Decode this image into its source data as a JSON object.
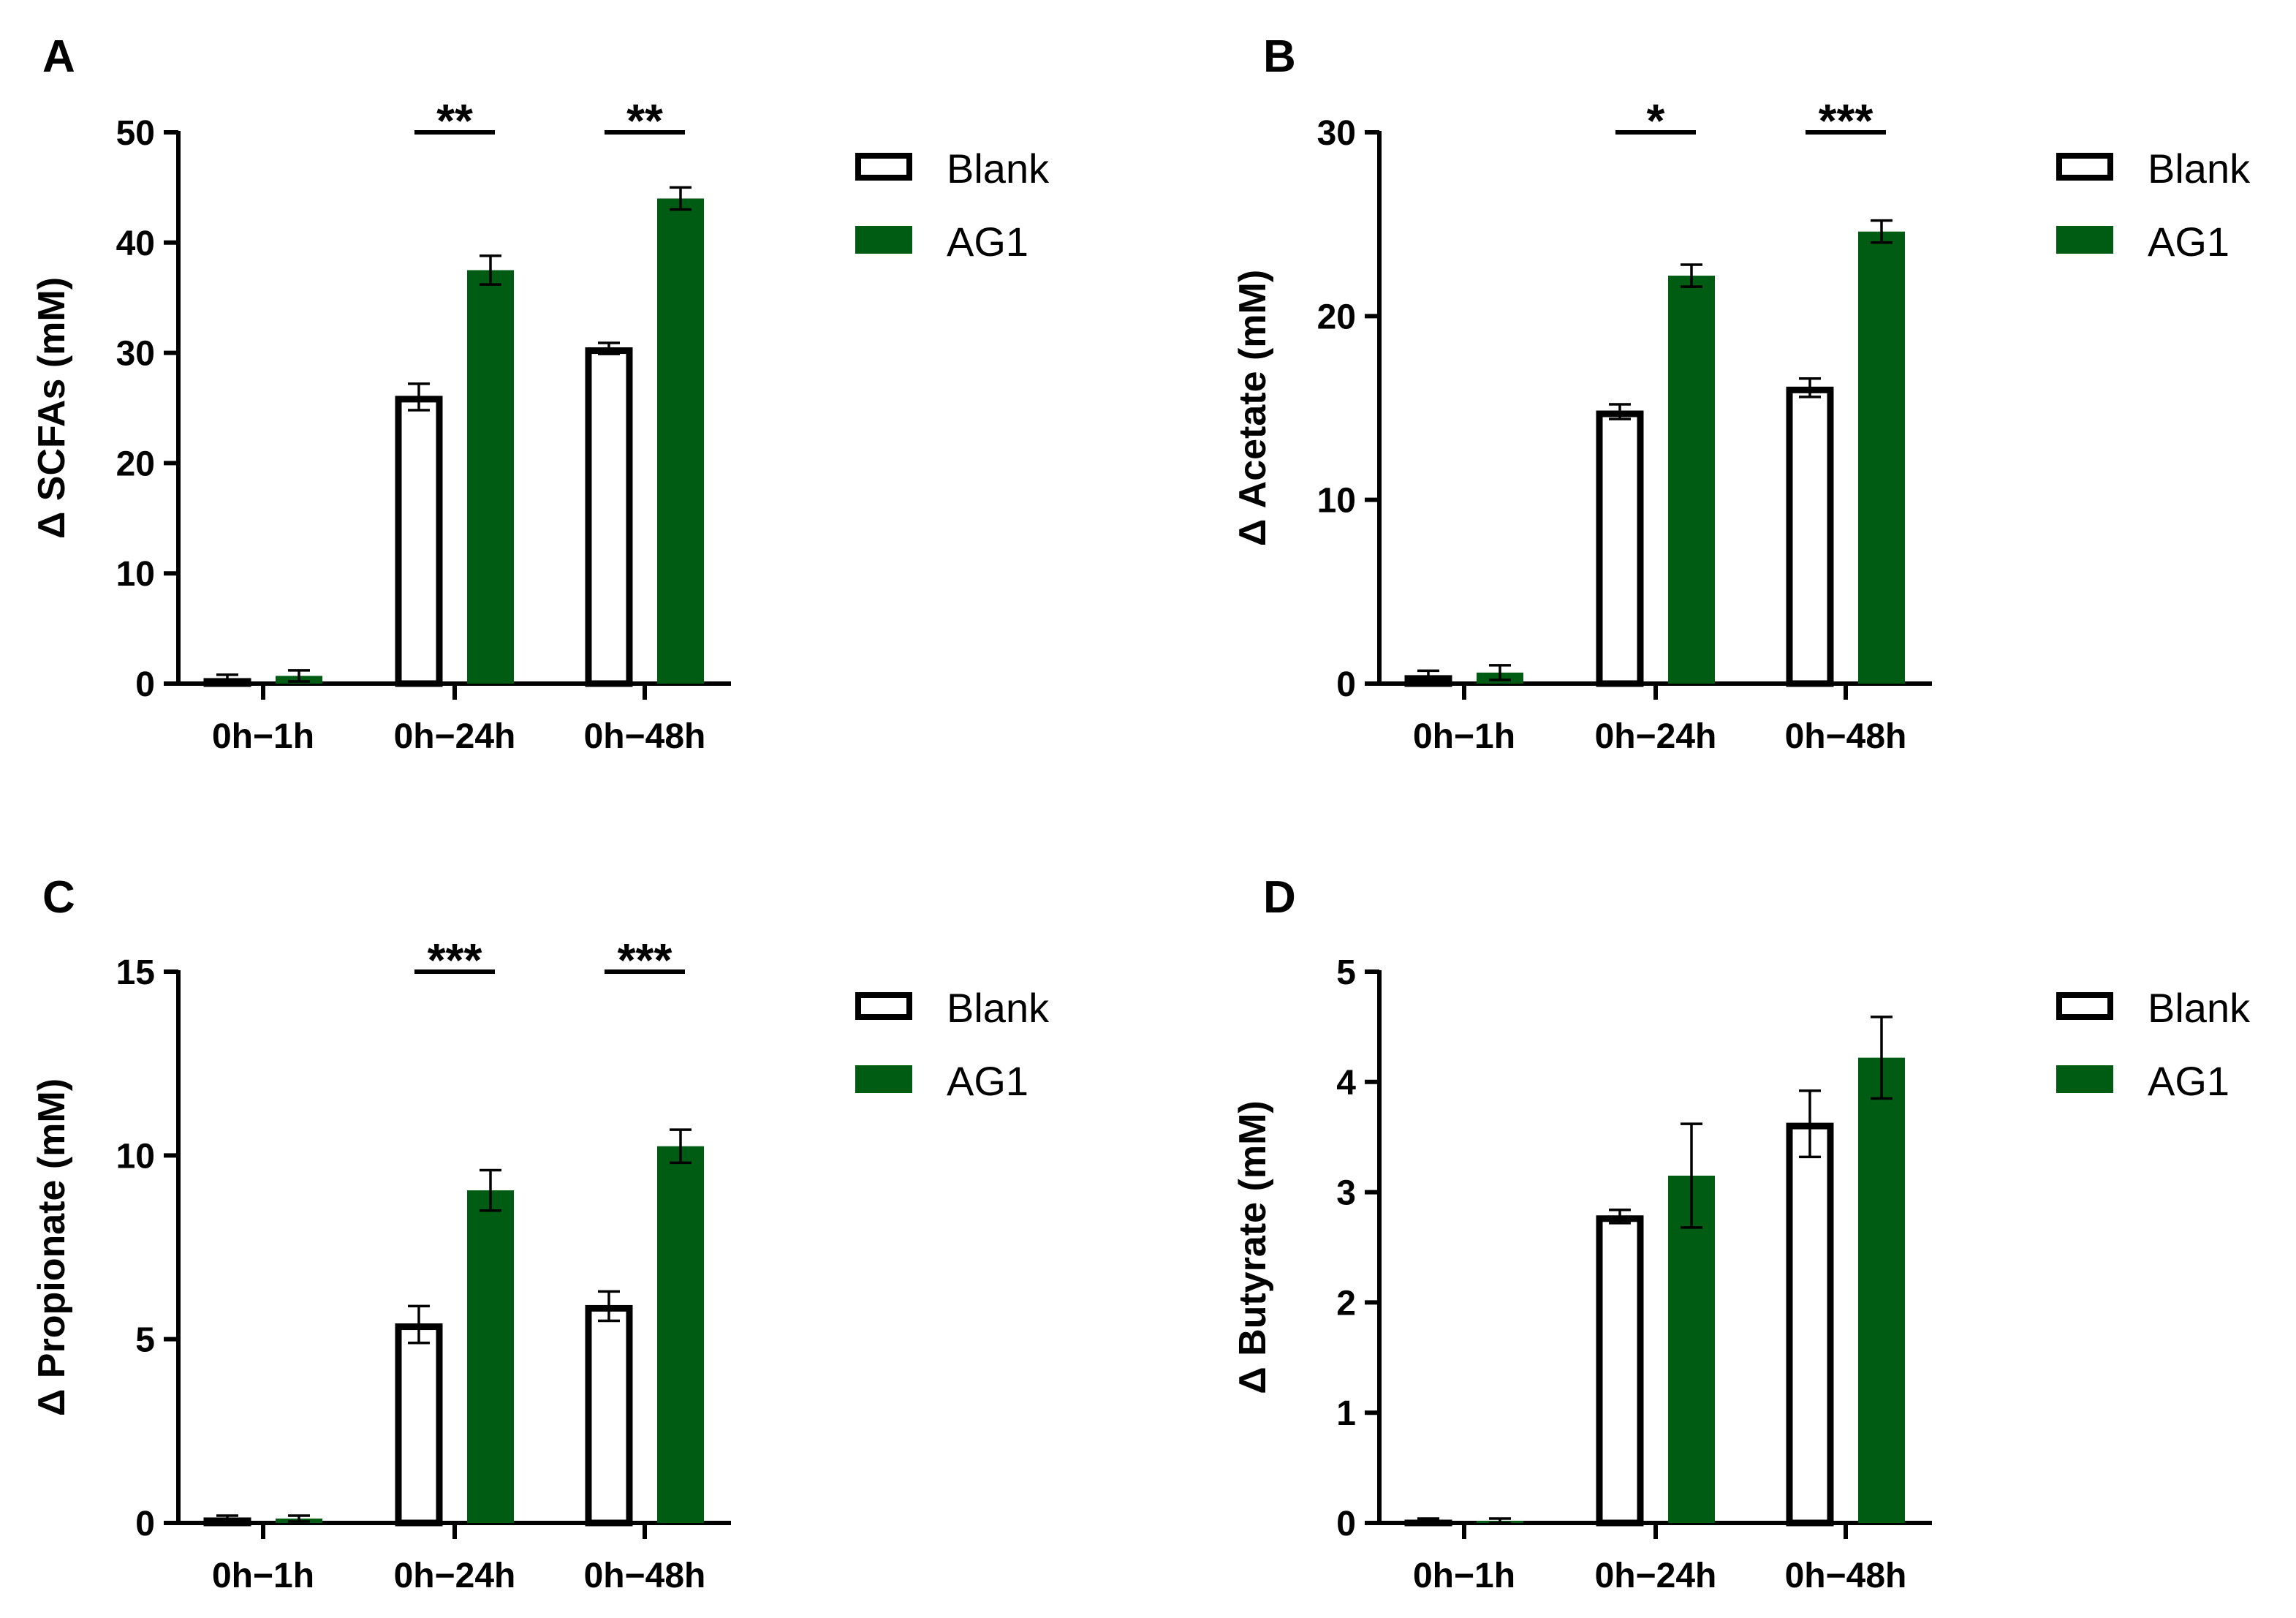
{
  "colors": {
    "blank_fill": "#ffffff",
    "blank_stroke": "#000000",
    "ag1_fill": "#005c12",
    "axis": "#000000"
  },
  "legend": [
    "Blank",
    "AG1"
  ],
  "chart_data": [
    {
      "panel": "A",
      "type": "bar",
      "categories": [
        "0h−1h",
        "0h−24h",
        "0h−48h"
      ],
      "ylabel": "Δ SCFAs (mM)",
      "ylim": [
        0,
        50
      ],
      "yticks": [
        0,
        10,
        20,
        30,
        40,
        50
      ],
      "series": [
        {
          "name": "Blank",
          "values": [
            0.4,
            26.0,
            30.4
          ],
          "errors": [
            0.4,
            1.2,
            0.5
          ]
        },
        {
          "name": "AG1",
          "values": [
            0.7,
            37.5,
            44.0
          ],
          "errors": [
            0.5,
            1.3,
            1.0
          ]
        }
      ],
      "significance": [
        "",
        "**",
        "**"
      ],
      "legend_position": "right"
    },
    {
      "panel": "B",
      "type": "bar",
      "categories": [
        "0h−1h",
        "0h−24h",
        "0h−48h"
      ],
      "ylabel": "Δ Acetate (mM)",
      "ylim": [
        0,
        30
      ],
      "yticks": [
        0,
        10,
        20,
        30
      ],
      "series": [
        {
          "name": "Blank",
          "values": [
            0.4,
            14.8,
            16.1
          ],
          "errors": [
            0.3,
            0.4,
            0.5
          ]
        },
        {
          "name": "AG1",
          "values": [
            0.6,
            22.2,
            24.6
          ],
          "errors": [
            0.4,
            0.6,
            0.6
          ]
        }
      ],
      "significance": [
        "",
        "*",
        "***"
      ],
      "legend_position": "right"
    },
    {
      "panel": "C",
      "type": "bar",
      "categories": [
        "0h−1h",
        "0h−24h",
        "0h−48h"
      ],
      "ylabel": "Δ Propionate (mM)",
      "ylim": [
        0,
        15
      ],
      "yticks": [
        0,
        5,
        10,
        15
      ],
      "series": [
        {
          "name": "Blank",
          "values": [
            0.12,
            5.4,
            5.9
          ],
          "errors": [
            0.08,
            0.5,
            0.4
          ]
        },
        {
          "name": "AG1",
          "values": [
            0.12,
            9.05,
            10.25
          ],
          "errors": [
            0.08,
            0.55,
            0.45
          ]
        }
      ],
      "significance": [
        "",
        "***",
        "***"
      ],
      "legend_position": "right"
    },
    {
      "panel": "D",
      "type": "bar",
      "categories": [
        "0h−1h",
        "0h−24h",
        "0h−48h"
      ],
      "ylabel": "Δ Butyrate (mM)",
      "ylim": [
        0,
        5
      ],
      "yticks": [
        0,
        1,
        2,
        3,
        4,
        5
      ],
      "series": [
        {
          "name": "Blank",
          "values": [
            0.02,
            2.78,
            3.62
          ],
          "errors": [
            0.02,
            0.06,
            0.3
          ]
        },
        {
          "name": "AG1",
          "values": [
            0.02,
            3.15,
            4.22
          ],
          "errors": [
            0.02,
            0.47,
            0.37
          ]
        }
      ],
      "significance": [
        "",
        "",
        ""
      ],
      "legend_position": "right"
    }
  ]
}
